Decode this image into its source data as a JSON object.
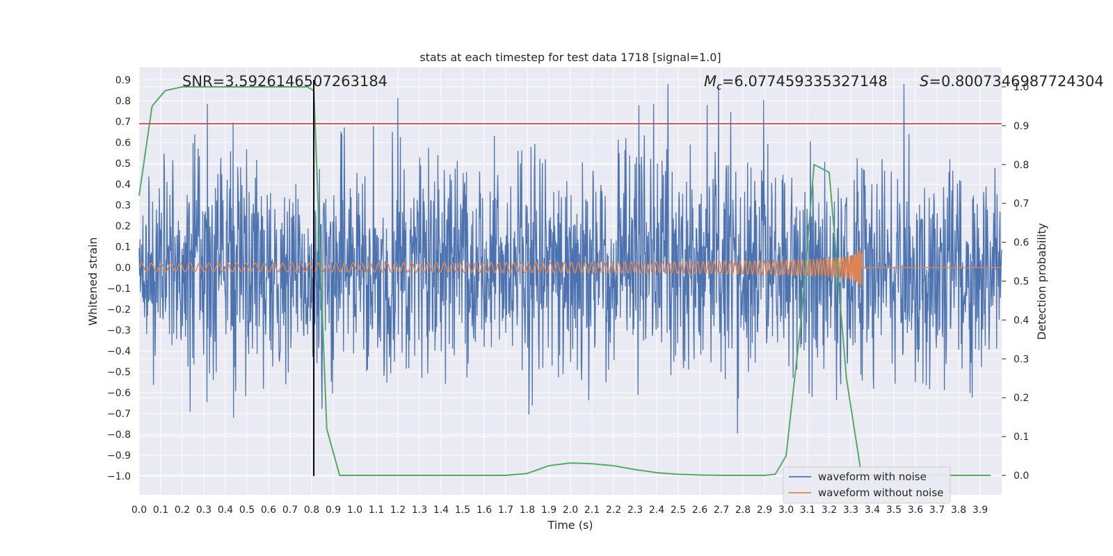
{
  "chart_data": {
    "type": "line",
    "title": "stats at each timestep for test data 1718 [signal=1.0]",
    "xlabel": "Time (s)",
    "ylabel": "Whitened strain",
    "y2label": "Detection probability",
    "xlim": [
      0.0,
      4.0
    ],
    "ylim": [
      -1.09,
      0.96
    ],
    "y2lim": [
      -0.05,
      1.05
    ],
    "xticks": [
      "0.0",
      "0.1",
      "0.2",
      "0.3",
      "0.4",
      "0.5",
      "0.6",
      "0.7",
      "0.8",
      "0.9",
      "1.0",
      "1.1",
      "1.2",
      "1.3",
      "1.4",
      "1.5",
      "1.6",
      "1.7",
      "1.8",
      "1.9",
      "2.0",
      "2.1",
      "2.2",
      "2.3",
      "2.4",
      "2.5",
      "2.6",
      "2.7",
      "2.8",
      "2.9",
      "3.0",
      "3.1",
      "3.2",
      "3.3",
      "3.4",
      "3.5",
      "3.6",
      "3.7",
      "3.8",
      "3.9"
    ],
    "yticks": [
      "0.9",
      "0.8",
      "0.7",
      "0.6",
      "0.5",
      "0.4",
      "0.3",
      "0.2",
      "0.1",
      "0.0",
      "−0.1",
      "−0.2",
      "−0.3",
      "−0.4",
      "−0.5",
      "−0.6",
      "−0.7",
      "−0.8",
      "−0.9",
      "−1.0"
    ],
    "y2ticks": [
      "1.0",
      "0.9",
      "0.8",
      "0.7",
      "0.6",
      "0.5",
      "0.4",
      "0.3",
      "0.2",
      "0.1",
      "0.0"
    ],
    "annotations": {
      "snr": "SNR=3.5926146507263184",
      "mc_symbol": "M",
      "mc_sub": "c",
      "mc_value": "=6.077459335327148",
      "s_symbol": "S",
      "s_value": "=0.8007346987724304"
    },
    "threshold_line": {
      "y": 0.69,
      "color": "#c44e52"
    },
    "vertical_line": {
      "x": 0.81,
      "y_from": -1.0,
      "y_to": 0.9,
      "color": "#000000"
    },
    "series": [
      {
        "name": "waveform with noise",
        "color": "#4c72b0",
        "axis": "left",
        "kind": "noise",
        "sigma": 0.26,
        "n_samples": 2048
      },
      {
        "name": "waveform without noise",
        "color": "#dd8452",
        "axis": "left",
        "kind": "chirp",
        "merger_time": 3.35,
        "amp_start": 0.02,
        "amp_peak": 0.1,
        "f_start": 22,
        "f_peak": 120
      },
      {
        "name": "detection probability",
        "color": "#55a868",
        "axis": "right",
        "x": [
          0.0,
          0.06,
          0.12,
          0.2,
          0.3,
          0.4,
          0.5,
          0.6,
          0.7,
          0.78,
          0.81,
          0.87,
          0.93,
          1.0,
          1.2,
          1.4,
          1.6,
          1.7,
          1.8,
          1.9,
          2.0,
          2.1,
          2.2,
          2.3,
          2.4,
          2.5,
          2.6,
          2.7,
          2.8,
          2.9,
          2.95,
          3.0,
          3.07,
          3.13,
          3.2,
          3.28,
          3.35,
          3.45,
          3.6,
          3.8,
          3.95
        ],
        "values": [
          0.72,
          0.95,
          0.99,
          1.0,
          1.0,
          1.0,
          1.0,
          1.0,
          1.0,
          1.0,
          0.99,
          0.12,
          0.0,
          0.0,
          0.0,
          0.0,
          0.0,
          0.0,
          0.005,
          0.025,
          0.032,
          0.03,
          0.025,
          0.015,
          0.007,
          0.003,
          0.001,
          0.0,
          0.0,
          0.0,
          0.003,
          0.05,
          0.4,
          0.8,
          0.78,
          0.25,
          0.0,
          0.0,
          0.0,
          0.0,
          0.0
        ]
      }
    ],
    "legend": {
      "placement": "lower-right",
      "entries": [
        "waveform with noise",
        "waveform without noise"
      ]
    }
  },
  "colors": {
    "axes_bg": "#eaeaf2",
    "grid": "#ffffff",
    "text": "#262626",
    "legend_bg": "#eaeaf2",
    "legend_border": "#cccccc"
  }
}
